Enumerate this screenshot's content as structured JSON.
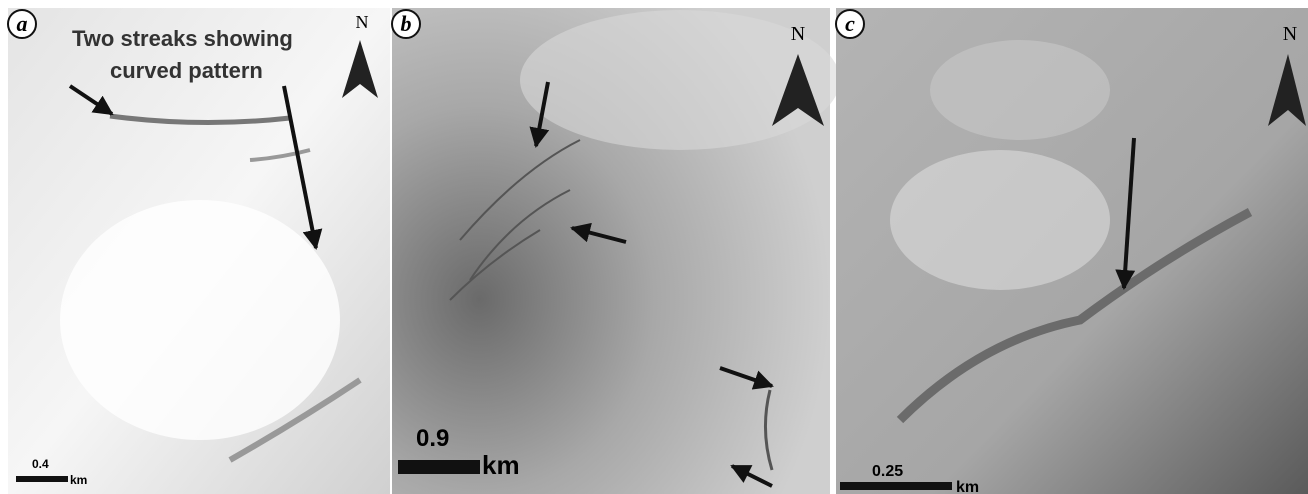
{
  "panels": [
    {
      "label": "a",
      "north": "N",
      "annotation": [
        "Two streaks showing",
        "curved pattern"
      ],
      "scale_bar": {
        "value": "0.4",
        "unit": "km"
      }
    },
    {
      "label": "b",
      "north": "N",
      "scale_bar": {
        "value": "0.9",
        "unit": "km"
      }
    },
    {
      "label": "c",
      "north": "N",
      "scale_bar": {
        "value": "0.25",
        "unit": "km"
      }
    }
  ]
}
